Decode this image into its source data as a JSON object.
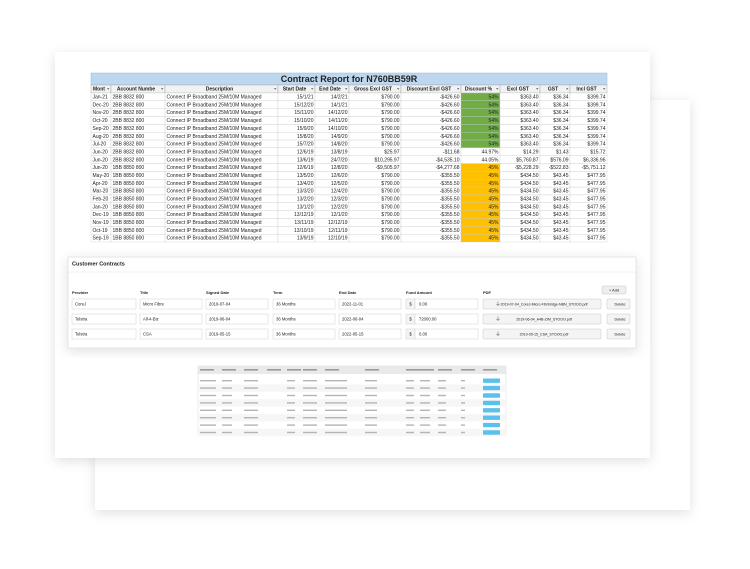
{
  "report": {
    "title": "Contract Report for N760BB59R",
    "headers": [
      "Mont",
      "Account Numbe",
      "Description",
      "Start Date",
      "End Date",
      "Gross Excl GST",
      "Discount Excl GST",
      "Discount %",
      "Excl GST",
      "GST",
      "Incl GST"
    ],
    "rows": [
      [
        "Jan-21",
        "2BB 8832 800",
        "Connect IP Broadband 25M/10M Managed",
        "15/1/21",
        "14/2/21",
        "$790.00",
        "-$426.60",
        "54%",
        "$363.40",
        "$36.34",
        "$399.74"
      ],
      [
        "Dec-20",
        "2BB 8832 800",
        "Connect IP Broadband 25M/10M Managed",
        "15/12/20",
        "14/1/21",
        "$790.00",
        "-$426.60",
        "54%",
        "$363.40",
        "$36.34",
        "$399.74"
      ],
      [
        "Nov-20",
        "2BB 8832 800",
        "Connect IP Broadband 25M/10M Managed",
        "15/11/20",
        "14/12/20",
        "$790.00",
        "-$426.60",
        "54%",
        "$363.40",
        "$36.34",
        "$399.74"
      ],
      [
        "Oct-20",
        "2BB 8832 800",
        "Connect IP Broadband 25M/10M Managed",
        "15/10/20",
        "14/11/20",
        "$790.00",
        "-$426.60",
        "54%",
        "$363.40",
        "$36.34",
        "$399.74"
      ],
      [
        "Sep-20",
        "2BB 8832 800",
        "Connect IP Broadband 25M/10M Managed",
        "15/9/20",
        "14/10/20",
        "$790.00",
        "-$426.60",
        "54%",
        "$363.40",
        "$36.34",
        "$399.74"
      ],
      [
        "Aug-20",
        "2BB 8832 800",
        "Connect IP Broadband 25M/10M Managed",
        "15/8/20",
        "14/9/20",
        "$790.00",
        "-$426.60",
        "54%",
        "$363.40",
        "$36.34",
        "$399.74"
      ],
      [
        "Jul-20",
        "2BB 8832 800",
        "Connect IP Broadband 25M/10M Managed",
        "15/7/20",
        "14/8/20",
        "$790.00",
        "-$426.60",
        "54%",
        "$363.40",
        "$36.34",
        "$399.74"
      ],
      [
        "Jun-20",
        "2BB 8832 800",
        "Connect IP Broadband 25M/10M Managed",
        "12/6/19",
        "13/8/19",
        "$25.97",
        "-$11.68",
        "44.97%",
        "$14.29",
        "$1.43",
        "$15.72"
      ],
      [
        "Jun-20",
        "2BB 8832 800",
        "Connect IP Broadband 25M/10M Managed",
        "13/6/19",
        "24/7/20",
        "$10,295.97",
        "-$4,535.10",
        "44.05%",
        "$5,760.87",
        "$576.09",
        "$6,336.96"
      ],
      [
        "Jun-20",
        "1BB 8850 800",
        "Connect IP Broadband 25M/10M Managed",
        "12/6/19",
        "12/8/20",
        "-$9,505.97",
        "-$4,277.68",
        "45%",
        "-$5,228.29",
        "-$522.83",
        "-$5,751.12"
      ],
      [
        "May-20",
        "1BB 8850 800",
        "Connect IP Broadband 25M/10M Managed",
        "13/5/20",
        "12/6/20",
        "$790.00",
        "-$355.50",
        "45%",
        "$434.50",
        "$43.45",
        "$477.95"
      ],
      [
        "Apr-20",
        "1BB 8850 800",
        "Connect IP Broadband 25M/10M Managed",
        "13/4/20",
        "12/5/20",
        "$790.00",
        "-$355.50",
        "45%",
        "$434.50",
        "$43.45",
        "$477.95"
      ],
      [
        "Mar-20",
        "1BB 8850 800",
        "Connect IP Broadband 25M/10M Managed",
        "13/3/20",
        "12/4/20",
        "$790.00",
        "-$355.50",
        "45%",
        "$434.50",
        "$43.45",
        "$477.95"
      ],
      [
        "Feb-20",
        "1BB 8850 800",
        "Connect IP Broadband 25M/10M Managed",
        "13/2/20",
        "12/3/20",
        "$790.00",
        "-$355.50",
        "45%",
        "$434.50",
        "$43.45",
        "$477.95"
      ],
      [
        "Jan-20",
        "1BB 8850 800",
        "Connect IP Broadband 25M/10M Managed",
        "13/1/20",
        "12/2/20",
        "$790.00",
        "-$355.50",
        "45%",
        "$434.50",
        "$43.45",
        "$477.95"
      ],
      [
        "Dec-19",
        "1BB 8850 800",
        "Connect IP Broadband 25M/10M Managed",
        "13/12/19",
        "12/1/20",
        "$790.00",
        "-$355.50",
        "45%",
        "$434.50",
        "$43.45",
        "$477.95"
      ],
      [
        "Nov-19",
        "1BB 8850 800",
        "Connect IP Broadband 25M/10M Managed",
        "13/11/19",
        "12/12/19",
        "$790.00",
        "-$355.50",
        "45%",
        "$434.50",
        "$43.45",
        "$477.95"
      ],
      [
        "Oct-19",
        "1BB 8850 800",
        "Connect IP Broadband 25M/10M Managed",
        "13/10/19",
        "12/11/19",
        "$790.00",
        "-$355.50",
        "45%",
        "$434.50",
        "$43.45",
        "$477.95"
      ],
      [
        "Sep-19",
        "1BB 8850 800",
        "Connect IP Broadband 25M/10M Managed",
        "13/9/19",
        "12/10/19",
        "$790.00",
        "-$355.50",
        "45%",
        "$434.50",
        "$43.45",
        "$477.95"
      ]
    ],
    "discount_fills": [
      "#70ad47",
      "#70ad47",
      "#70ad47",
      "#70ad47",
      "#70ad47",
      "#70ad47",
      "#70ad47",
      "#ffffff",
      "#ffffff",
      "#ffc000",
      "#ffc000",
      "#ffc000",
      "#ffc000",
      "#ffc000",
      "#ffc000",
      "#ffc000",
      "#ffc000",
      "#ffc000",
      "#ffc000"
    ]
  },
  "contracts": {
    "title": "Customer Contracts",
    "add_button": "+ Add",
    "headers": [
      "Provider",
      "Title",
      "Signed Date",
      "Term",
      "End Date",
      "Fund Amount",
      "PDF"
    ],
    "currency": "$",
    "delete_button": "Delete",
    "rows": [
      [
        "CoreJ",
        "Micro Fibre",
        "2019-07-04",
        "36 Months",
        "2022-11-01",
        "0.00",
        "2019-07-04_CoreJ-Micro-Fibrbridge-NBN_STOOO.pdf"
      ],
      [
        "Telstra",
        "All-4-Biz",
        "2019-06-04",
        "36 Months",
        "2022-06-04",
        "72000.00",
        "2019-06-04_A4B-ZIM_STOOO.pdf"
      ],
      [
        "Telstra",
        "CSA",
        "2019-05-15",
        "36 Months",
        "2022-05-15",
        "0.00",
        "2019-05-15_CSA_STOOO.pdf"
      ]
    ]
  }
}
